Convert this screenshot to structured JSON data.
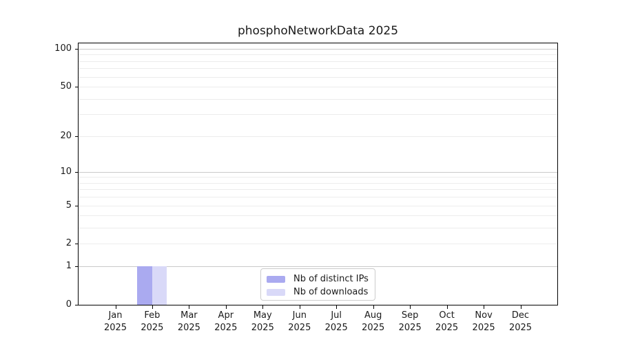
{
  "chart_data": {
    "type": "bar",
    "title": "phosphoNetworkData 2025",
    "x_year": "2025",
    "categories": [
      "Jan",
      "Feb",
      "Mar",
      "Apr",
      "May",
      "Jun",
      "Jul",
      "Aug",
      "Sep",
      "Oct",
      "Nov",
      "Dec"
    ],
    "series": [
      {
        "name": "Nb of distinct IPs",
        "color": "#aaaaf0",
        "values": [
          0,
          1,
          0,
          0,
          0,
          0,
          0,
          0,
          0,
          0,
          0,
          0
        ]
      },
      {
        "name": "Nb of downloads",
        "color": "#d9d9f8",
        "values": [
          0,
          1,
          0,
          0,
          0,
          0,
          0,
          0,
          0,
          0,
          0,
          0
        ]
      }
    ],
    "yscale": "log1p",
    "ylim": [
      0,
      110.5
    ],
    "yticks": [
      0,
      1,
      2,
      5,
      10,
      20,
      50,
      100
    ],
    "major_gridlines": [
      1,
      10,
      100
    ],
    "minor_gridlines": [
      2,
      3,
      4,
      5,
      6,
      7,
      8,
      9,
      20,
      30,
      40,
      50,
      60,
      70,
      80,
      90
    ],
    "grid": "horizontal-only",
    "legend_position": "lower center",
    "colors": {
      "spine": "#000000",
      "grid_major": "#c9c9c9",
      "grid_minor": "#ececec",
      "text": "#1a1a1a",
      "legend_border": "#cccccc",
      "background": "#ffffff"
    }
  }
}
